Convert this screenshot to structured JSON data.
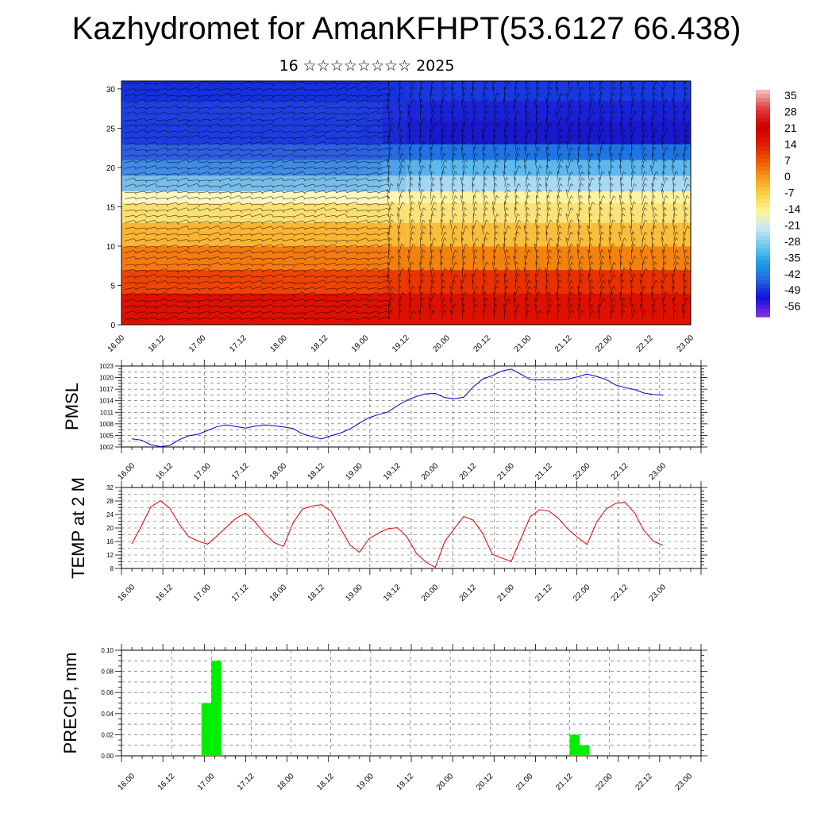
{
  "header": {
    "title": "Kazhydromet for AmanKFHPT(53.6127 66.438)",
    "date": "16 ☆☆☆☆☆☆☆☆ 2025"
  },
  "colors": {
    "pmsl_line": "#0000cc",
    "temp_line": "#dd0000",
    "precip_bar": "#00ee00",
    "grid": "#000000"
  },
  "chart_data": [
    {
      "type": "heatmap",
      "id": "upper-air",
      "x_ticks": [
        "16.00",
        "16.12",
        "17.00",
        "17.12",
        "18.00",
        "18.12",
        "19.00",
        "19.12",
        "20.00",
        "20.12",
        "21.00",
        "21.12",
        "22.00",
        "22.12",
        "23.00"
      ],
      "y_ticks": [
        "0",
        "5",
        "10",
        "15",
        "20",
        "25",
        "30"
      ],
      "ylim": [
        0,
        31
      ],
      "colorbar": {
        "labels": [
          "35",
          "28",
          "21",
          "14",
          "7",
          "0",
          "-7",
          "-14",
          "-21",
          "-28",
          "-35",
          "-42",
          "-49",
          "-56"
        ],
        "colors": [
          "#f4b6b6",
          "#e23c3c",
          "#cc0000",
          "#dd1a00",
          "#ee5500",
          "#f79a1a",
          "#fbd14a",
          "#fff79a",
          "#c8e6f5",
          "#6fc7ef",
          "#1e9ce6",
          "#2266dd",
          "#1010dd",
          "#7a2fe0"
        ]
      },
      "bands": [
        {
          "from": 0,
          "to": 4,
          "left_color": "#dd1100",
          "right_color": "#dd1100"
        },
        {
          "from": 4,
          "to": 7,
          "left_color": "#ee4400",
          "right_color": "#e83000"
        },
        {
          "from": 7,
          "to": 10,
          "left_color": "#f57a10",
          "right_color": "#f4820f"
        },
        {
          "from": 10,
          "to": 13,
          "left_color": "#f9b533",
          "right_color": "#f9be3c"
        },
        {
          "from": 13,
          "to": 15.5,
          "left_color": "#fbe070",
          "right_color": "#fbe379"
        },
        {
          "from": 15.5,
          "to": 17,
          "left_color": "#fdf6c0",
          "right_color": "#fff3a0"
        },
        {
          "from": 17,
          "to": 19,
          "left_color": "#77bde8",
          "right_color": "#a8daf3"
        },
        {
          "from": 19,
          "to": 21,
          "left_color": "#3f8be5",
          "right_color": "#5cb8ef"
        },
        {
          "from": 21,
          "to": 23,
          "left_color": "#2d5fe0",
          "right_color": "#1f74e3"
        },
        {
          "from": 23,
          "to": 26,
          "left_color": "#1c3de0",
          "right_color": "#1818cc"
        },
        {
          "from": 26,
          "to": 28.5,
          "left_color": "#1f40e0",
          "right_color": "#1a22d8"
        },
        {
          "from": 28.5,
          "to": 31,
          "left_color": "#1530dd",
          "right_color": "#1838e0"
        }
      ]
    },
    {
      "type": "line",
      "id": "pmsl",
      "ylabel": "PMSL",
      "yticks": [
        "1002",
        "1005",
        "1008",
        "1011",
        "1014",
        "1017",
        "1020",
        "1023"
      ],
      "ylim": [
        1002,
        1023
      ],
      "x_ticks": [
        "16.00",
        "16.12",
        "17.00",
        "17.12",
        "18.00",
        "18.12",
        "19.00",
        "19.12",
        "20.00",
        "20.12",
        "21.00",
        "21.12",
        "22.00",
        "22.12",
        "23.00"
      ],
      "x_hours": [
        0,
        3,
        6,
        9,
        12,
        15,
        18,
        21,
        24,
        27,
        30,
        33,
        36,
        39,
        42,
        45,
        48,
        51,
        54,
        57,
        60,
        63,
        66,
        69,
        72,
        75,
        78,
        81,
        84,
        87,
        90,
        93,
        96,
        99,
        102,
        105,
        108,
        111,
        114,
        117,
        120,
        123,
        126,
        129,
        132,
        135,
        138,
        141,
        144,
        147,
        150,
        153,
        156,
        159,
        162,
        165,
        168
      ],
      "values": [
        1004.1,
        1003.8,
        1002.6,
        1002.1,
        1002.4,
        1003.9,
        1004.9,
        1005.3,
        1006.3,
        1007.3,
        1007.7,
        1007.3,
        1006.9,
        1007.4,
        1007.7,
        1007.5,
        1007.2,
        1006.8,
        1005.4,
        1004.7,
        1004.1,
        1004.9,
        1005.6,
        1006.7,
        1008.2,
        1009.6,
        1010.4,
        1011.1,
        1012.7,
        1014.1,
        1015.1,
        1015.8,
        1015.9,
        1014.8,
        1014.5,
        1014.9,
        1017.6,
        1019.6,
        1020.5,
        1021.7,
        1022.2,
        1020.9,
        1019.5,
        1019.4,
        1019.5,
        1019.4,
        1019.6,
        1020.2,
        1020.9,
        1020.3,
        1019.5,
        1018.1,
        1017.4,
        1016.9,
        1016.0,
        1015.6,
        1015.4
      ]
    },
    {
      "type": "line",
      "id": "temp",
      "ylabel": "TEMP at 2 M",
      "yticks": [
        "8",
        "12",
        "16",
        "20",
        "24",
        "28",
        "32"
      ],
      "ylim": [
        8,
        32
      ],
      "x_ticks": [
        "16.00",
        "16.12",
        "17.00",
        "17.12",
        "18.00",
        "18.12",
        "19.00",
        "19.12",
        "20.00",
        "20.12",
        "21.00",
        "21.12",
        "22.00",
        "22.12",
        "23.00"
      ],
      "x_hours": [
        0,
        3,
        6,
        9,
        12,
        15,
        18,
        21,
        24,
        27,
        30,
        33,
        36,
        39,
        42,
        45,
        48,
        51,
        54,
        57,
        60,
        63,
        66,
        69,
        72,
        75,
        78,
        81,
        84,
        87,
        90,
        93,
        96,
        99,
        102,
        105,
        108,
        111,
        114,
        117,
        120,
        123,
        126,
        129,
        132,
        135,
        138,
        141,
        144,
        147,
        150,
        153,
        156,
        159,
        162,
        165,
        168
      ],
      "values": [
        15.3,
        20.5,
        26.2,
        28.1,
        25.9,
        21.2,
        17.4,
        16.1,
        15.2,
        17.7,
        20.3,
        22.9,
        24.4,
        21.8,
        18.3,
        15.7,
        14.5,
        21.5,
        25.6,
        26.5,
        26.9,
        25.0,
        19.9,
        15.0,
        12.8,
        16.8,
        18.5,
        19.8,
        20.1,
        17.4,
        12.5,
        9.9,
        8.3,
        16.0,
        19.8,
        23.4,
        22.3,
        18.4,
        12.2,
        11.1,
        10.1,
        16.7,
        23.3,
        25.4,
        25.0,
        22.8,
        19.6,
        17.2,
        15.1,
        21.7,
        25.6,
        27.3,
        27.6,
        24.5,
        19.2,
        16.0,
        14.9
      ]
    },
    {
      "type": "bar",
      "id": "precip",
      "ylabel": "PRECIP, mm",
      "yticks": [
        "0.00",
        "0.02",
        "0.04",
        "0.06",
        "0.08",
        "0.10"
      ],
      "ylim": [
        0,
        0.1
      ],
      "x_ticks": [
        "16.00",
        "16.12",
        "17.00",
        "17.12",
        "18.00",
        "18.12",
        "19.00",
        "19.12",
        "20.00",
        "20.12",
        "21.00",
        "21.12",
        "22.00",
        "22.12",
        "23.00"
      ],
      "bars": [
        {
          "start_hour": 21,
          "end_hour": 24,
          "value": 0.05
        },
        {
          "start_hour": 24,
          "end_hour": 27,
          "value": 0.09
        },
        {
          "start_hour": 132,
          "end_hour": 135,
          "value": 0.02
        },
        {
          "start_hour": 135,
          "end_hour": 138,
          "value": 0.01
        }
      ]
    }
  ]
}
